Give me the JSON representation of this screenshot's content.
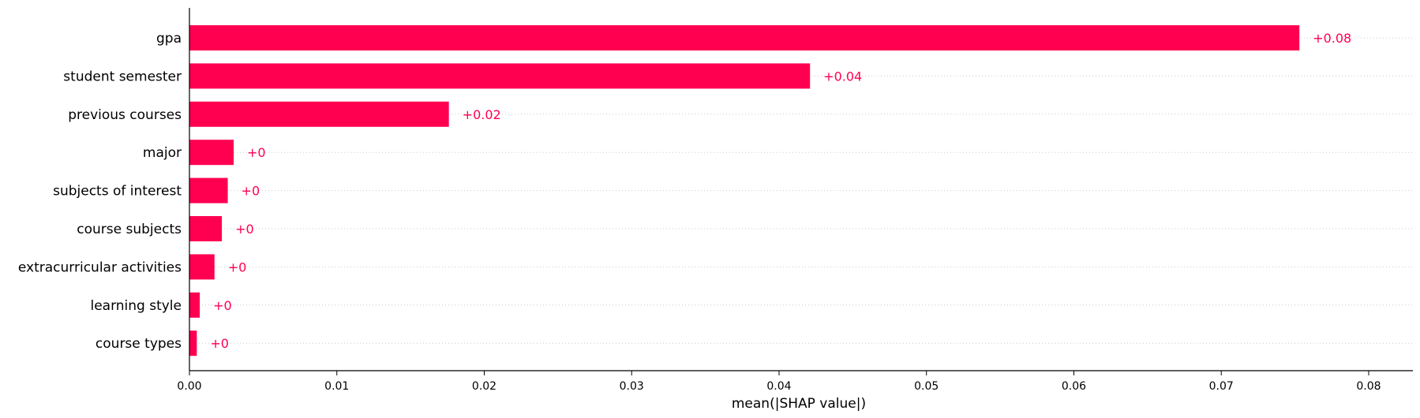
{
  "chart_data": {
    "type": "bar",
    "orientation": "horizontal",
    "categories": [
      "gpa",
      "student semester",
      "previous courses",
      "major",
      "subjects of interest",
      "course subjects",
      "extracurricular activities",
      "learning style",
      "course types"
    ],
    "values": [
      0.0753,
      0.0421,
      0.0176,
      0.003,
      0.0026,
      0.0022,
      0.0017,
      0.0007,
      0.0005
    ],
    "value_labels": [
      "+0.08",
      "+0.04",
      "+0.02",
      "+0",
      "+0",
      "+0",
      "+0",
      "+0",
      "+0"
    ],
    "xlabel": "mean(|SHAP value|)",
    "xlim": [
      0,
      0.083
    ],
    "xticks": [
      0.0,
      0.01,
      0.02,
      0.03,
      0.04,
      0.05,
      0.06,
      0.07,
      0.08
    ],
    "xtick_labels": [
      "0.00",
      "0.01",
      "0.02",
      "0.03",
      "0.04",
      "0.05",
      "0.06",
      "0.07",
      "0.08"
    ],
    "grid": "horizontal dotted guide lines per row",
    "legend": "none",
    "bar_color": "#ff0051",
    "label_color": "#ff0051",
    "grid_color": "#cccccc",
    "axis_color": "#000000"
  }
}
